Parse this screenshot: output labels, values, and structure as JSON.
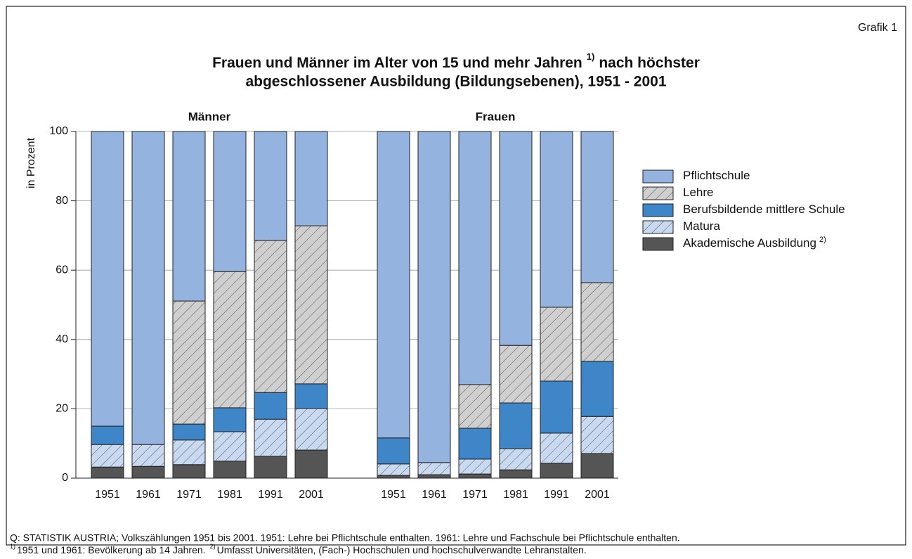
{
  "label": "Grafik 1",
  "chart_data": {
    "type": "stacked_bar",
    "title": [
      "Frauen und Männer im Alter von 15 und mehr Jahren",
      "1)",
      "nach höchster",
      "abgeschlossener Ausbildung (Bildungsebenen), 1951 - 2001"
    ],
    "ylabel": "in Prozent",
    "panel_titles": [
      "Männer",
      "Frauen"
    ],
    "categories": [
      [
        "1951",
        "1961",
        "1971",
        "1981",
        "1991",
        "2001"
      ],
      [
        "1951",
        "1961",
        "1971",
        "1981",
        "1991",
        "2001"
      ]
    ],
    "ylim": [
      0,
      100
    ],
    "yticks": [
      0,
      20,
      40,
      60,
      80,
      100
    ],
    "grid": true,
    "series": [
      {
        "name": "Pflichtschule",
        "color": "#94b3de",
        "hatch": false,
        "values": [
          [
            85.0,
            90.3,
            48.9,
            40.4,
            31.4,
            27.2
          ],
          [
            88.4,
            95.5,
            73.0,
            61.7,
            50.7,
            43.6
          ]
        ]
      },
      {
        "name": "Lehre",
        "color": "#cfcfcf",
        "hatch": true,
        "values": [
          [
            0,
            0,
            35.5,
            39.3,
            43.9,
            45.6
          ],
          [
            0,
            0,
            12.6,
            16.6,
            21.3,
            22.7
          ]
        ]
      },
      {
        "name": "Berufsbildende mittlere Schule",
        "color": "#3f86c9",
        "hatch": false,
        "values": [
          [
            5.3,
            0,
            4.6,
            6.9,
            7.7,
            7.1
          ],
          [
            7.5,
            0,
            8.9,
            13.2,
            15.0,
            15.9
          ]
        ]
      },
      {
        "name": "Matura",
        "color": "#c8d9f0",
        "hatch": true,
        "values": [
          [
            6.5,
            6.3,
            7.1,
            8.5,
            10.7,
            12.0
          ],
          [
            3.3,
            3.5,
            4.3,
            6.1,
            8.7,
            10.7
          ]
        ]
      },
      {
        "name": "Akademische Ausbildung",
        "note": "2)",
        "color": "#555555",
        "hatch": false,
        "values": [
          [
            3.2,
            3.4,
            3.9,
            4.9,
            6.3,
            8.1
          ],
          [
            0.8,
            1.0,
            1.2,
            2.4,
            4.3,
            7.1
          ]
        ]
      }
    ]
  },
  "source": "Q: STATISTIK AUSTRIA; Volkszählungen 1951 bis 2001. 1951: Lehre bei Pflichtschule enthalten. 1961: Lehre und Fachschule bei Pflichtschule enthalten.",
  "notes": [
    {
      "mark": "1)",
      "text": "1951 und 1961: Bevölkerung ab 14 Jahren."
    },
    {
      "mark": "2)",
      "text": "Umfasst Universitäten, (Fach-) Hochschulen und hochschulverwandte Lehranstalten."
    }
  ]
}
